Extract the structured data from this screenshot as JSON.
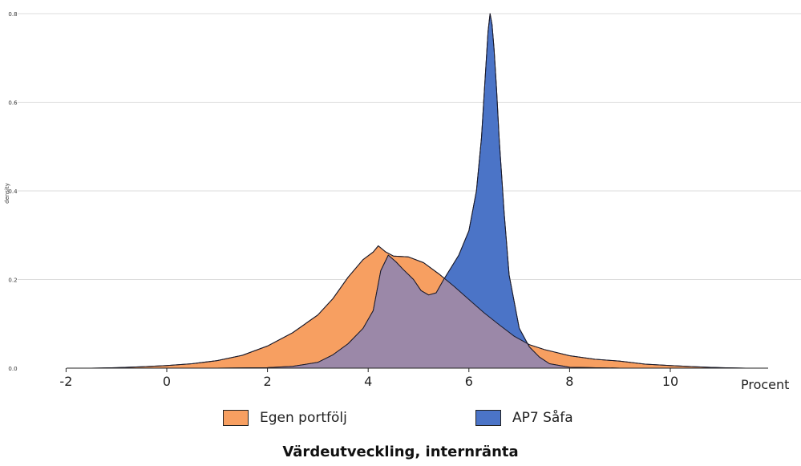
{
  "chart_data": {
    "type": "area",
    "xlabel": "Procent",
    "ylabel": "density",
    "xlim": [
      -2,
      11.8
    ],
    "ylim": [
      0,
      0.8
    ],
    "xticks": [
      -2,
      0,
      2,
      4,
      6,
      8,
      10
    ],
    "yticks": [
      0.0,
      0.2,
      0.4,
      0.6,
      0.8
    ],
    "ytick_labels": [
      "0.0",
      "0.2",
      "0.4",
      "0.6",
      "0.8"
    ],
    "grid": "horizontal",
    "legend_position": "bottom",
    "series": [
      {
        "name": "Egen portfölj",
        "color": "#f79f61",
        "x": [
          -1.5,
          -1.0,
          -0.5,
          0.0,
          0.5,
          1.0,
          1.5,
          2.0,
          2.5,
          3.0,
          3.3,
          3.6,
          3.9,
          4.1,
          4.2,
          4.35,
          4.5,
          4.8,
          5.1,
          5.4,
          5.7,
          6.0,
          6.3,
          6.6,
          6.9,
          7.2,
          7.5,
          8.0,
          8.5,
          9.0,
          9.5,
          10.0,
          10.5,
          11.0,
          11.5
        ],
        "values": [
          0.0,
          0.001,
          0.003,
          0.006,
          0.01,
          0.017,
          0.029,
          0.05,
          0.08,
          0.12,
          0.157,
          0.205,
          0.245,
          0.262,
          0.276,
          0.262,
          0.253,
          0.251,
          0.238,
          0.213,
          0.185,
          0.155,
          0.125,
          0.098,
          0.072,
          0.053,
          0.042,
          0.028,
          0.02,
          0.016,
          0.009,
          0.006,
          0.003,
          0.001,
          0.0
        ]
      },
      {
        "name": "AP7 Såfa",
        "color": "#4b74c7",
        "x": [
          -1.5,
          0.0,
          1.0,
          2.0,
          2.5,
          3.0,
          3.3,
          3.6,
          3.9,
          4.1,
          4.25,
          4.4,
          4.55,
          4.7,
          4.9,
          5.05,
          5.2,
          5.35,
          5.5,
          5.8,
          6.0,
          6.15,
          6.25,
          6.32,
          6.38,
          6.42,
          6.46,
          6.5,
          6.55,
          6.6,
          6.7,
          6.8,
          7.0,
          7.2,
          7.4,
          7.6,
          8.0,
          9.0,
          11.0
        ],
        "values": [
          0.0,
          0.0,
          0.0,
          0.001,
          0.004,
          0.013,
          0.03,
          0.055,
          0.09,
          0.13,
          0.22,
          0.255,
          0.24,
          0.222,
          0.2,
          0.175,
          0.165,
          0.17,
          0.2,
          0.255,
          0.31,
          0.4,
          0.52,
          0.65,
          0.76,
          0.8,
          0.775,
          0.72,
          0.63,
          0.52,
          0.35,
          0.21,
          0.09,
          0.048,
          0.025,
          0.01,
          0.002,
          0.0,
          0.0
        ]
      }
    ],
    "overlap_color": "#9b88a8"
  },
  "legend": {
    "items": [
      {
        "label": "Egen portfölj",
        "color": "#f79f61"
      },
      {
        "label": "AP7 Såfa",
        "color": "#4b74c7"
      }
    ]
  },
  "caption": "Värdeutveckling, internränta"
}
